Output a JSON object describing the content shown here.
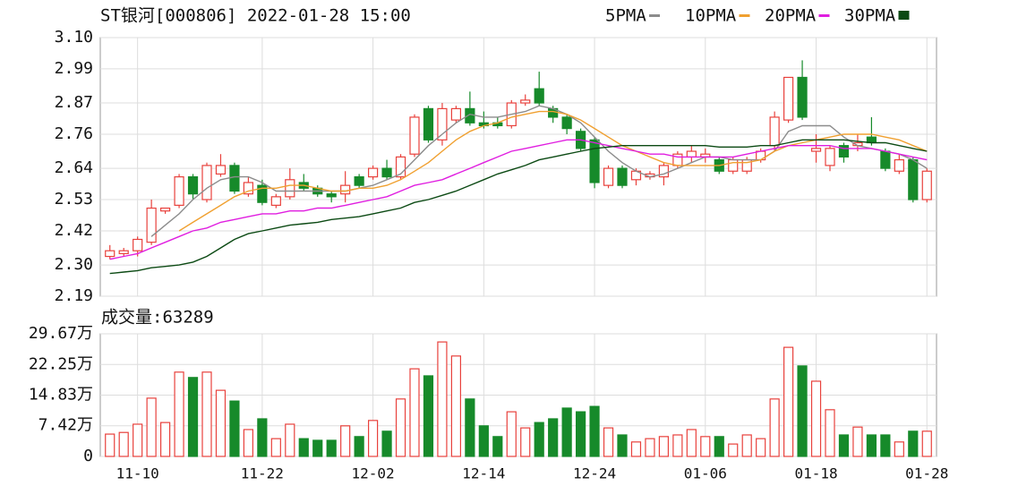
{
  "chart_data": [
    {
      "type": "candlestick",
      "title": "ST银河[000806] 2022-01-28 15:00",
      "open": [
        2.33,
        2.34,
        2.35,
        2.38,
        2.49,
        2.51,
        2.61,
        2.53,
        2.62,
        2.65,
        2.55,
        2.58,
        2.51,
        2.54,
        2.59,
        2.57,
        2.55,
        2.55,
        2.61,
        2.61,
        2.64,
        2.61,
        2.69,
        2.85,
        2.74,
        2.81,
        2.85,
        2.8,
        2.8,
        2.79,
        2.87,
        2.92,
        2.85,
        2.82,
        2.77,
        2.74,
        2.58,
        2.64,
        2.6,
        2.61,
        2.61,
        2.65,
        2.68,
        2.68,
        2.67,
        2.63,
        2.63,
        2.67,
        2.72,
        2.81,
        2.96,
        2.7,
        2.65,
        2.72,
        2.72,
        2.75,
        2.7,
        2.63,
        2.67,
        2.53
      ],
      "high": [
        2.37,
        2.36,
        2.4,
        2.53,
        2.5,
        2.62,
        2.62,
        2.66,
        2.69,
        2.66,
        2.61,
        2.6,
        2.55,
        2.64,
        2.62,
        2.58,
        2.56,
        2.63,
        2.62,
        2.65,
        2.67,
        2.69,
        2.83,
        2.86,
        2.87,
        2.86,
        2.91,
        2.84,
        2.82,
        2.88,
        2.9,
        2.98,
        2.86,
        2.83,
        2.78,
        2.75,
        2.65,
        2.65,
        2.64,
        2.63,
        2.66,
        2.7,
        2.72,
        2.71,
        2.68,
        2.68,
        2.68,
        2.71,
        2.84,
        2.96,
        3.02,
        2.76,
        2.72,
        2.73,
        2.76,
        2.82,
        2.71,
        2.69,
        2.68,
        2.64
      ],
      "low": [
        2.32,
        2.33,
        2.33,
        2.37,
        2.48,
        2.5,
        2.53,
        2.52,
        2.61,
        2.55,
        2.54,
        2.51,
        2.5,
        2.53,
        2.56,
        2.54,
        2.52,
        2.52,
        2.57,
        2.6,
        2.6,
        2.6,
        2.68,
        2.73,
        2.72,
        2.8,
        2.79,
        2.78,
        2.78,
        2.78,
        2.86,
        2.86,
        2.8,
        2.76,
        2.7,
        2.57,
        2.57,
        2.57,
        2.58,
        2.6,
        2.58,
        2.64,
        2.66,
        2.66,
        2.62,
        2.62,
        2.62,
        2.66,
        2.7,
        2.8,
        2.81,
        2.66,
        2.63,
        2.66,
        2.7,
        2.72,
        2.63,
        2.62,
        2.52,
        2.52
      ],
      "close": [
        2.35,
        2.35,
        2.39,
        2.5,
        2.5,
        2.61,
        2.55,
        2.65,
        2.65,
        2.56,
        2.59,
        2.52,
        2.54,
        2.6,
        2.57,
        2.55,
        2.54,
        2.58,
        2.58,
        2.64,
        2.61,
        2.68,
        2.82,
        2.74,
        2.85,
        2.85,
        2.8,
        2.79,
        2.79,
        2.87,
        2.88,
        2.87,
        2.82,
        2.78,
        2.71,
        2.59,
        2.64,
        2.58,
        2.63,
        2.62,
        2.65,
        2.69,
        2.7,
        2.69,
        2.63,
        2.67,
        2.67,
        2.7,
        2.82,
        2.96,
        2.82,
        2.71,
        2.71,
        2.68,
        2.73,
        2.73,
        2.64,
        2.67,
        2.53,
        2.63
      ],
      "up_color": "#e8413c",
      "down_color": "#168a2a",
      "ylim": [
        2.19,
        3.1
      ],
      "yticks": [
        {
          "value": 3.1,
          "label": "3.10"
        },
        2.99,
        2.87,
        2.76,
        2.64,
        2.53,
        2.42,
        {
          "value": 2.3,
          "label": "2.30"
        },
        2.19
      ],
      "grid": true,
      "series": [
        {
          "name": "5PMA",
          "color": "#8c8c8c",
          "values": [
            null,
            null,
            null,
            2.4,
            2.44,
            2.48,
            2.53,
            2.57,
            2.6,
            2.61,
            2.61,
            2.59,
            2.56,
            2.56,
            2.56,
            2.56,
            2.56,
            2.56,
            2.57,
            2.58,
            2.6,
            2.62,
            2.67,
            2.72,
            2.76,
            2.8,
            2.83,
            2.82,
            2.82,
            2.83,
            2.84,
            2.86,
            2.85,
            2.83,
            2.8,
            2.75,
            2.7,
            2.66,
            2.63,
            2.61,
            2.62,
            2.64,
            2.66,
            2.68,
            2.68,
            2.67,
            2.67,
            2.67,
            2.7,
            2.77,
            2.79,
            2.79,
            2.79,
            2.75,
            2.72,
            2.71,
            2.7,
            2.69,
            2.67,
            2.64
          ]
        },
        {
          "name": "10PMA",
          "color": "#f0a030",
          "values": [
            null,
            null,
            null,
            null,
            null,
            2.42,
            2.45,
            2.48,
            2.51,
            2.54,
            2.56,
            2.57,
            2.57,
            2.58,
            2.58,
            2.57,
            2.56,
            2.56,
            2.57,
            2.57,
            2.58,
            2.6,
            2.63,
            2.66,
            2.7,
            2.74,
            2.77,
            2.79,
            2.8,
            2.82,
            2.83,
            2.84,
            2.84,
            2.83,
            2.81,
            2.78,
            2.75,
            2.72,
            2.7,
            2.68,
            2.66,
            2.65,
            2.65,
            2.65,
            2.65,
            2.66,
            2.66,
            2.67,
            2.7,
            2.72,
            2.73,
            2.74,
            2.75,
            2.76,
            2.76,
            2.76,
            2.75,
            2.74,
            2.72,
            2.7
          ]
        },
        {
          "name": "20PMA",
          "color": "#e01ee0",
          "values": [
            2.32,
            2.33,
            2.34,
            2.36,
            2.38,
            2.4,
            2.42,
            2.43,
            2.45,
            2.46,
            2.47,
            2.48,
            2.48,
            2.49,
            2.49,
            2.5,
            2.5,
            2.51,
            2.52,
            2.53,
            2.54,
            2.56,
            2.58,
            2.59,
            2.6,
            2.62,
            2.64,
            2.66,
            2.68,
            2.7,
            2.71,
            2.72,
            2.73,
            2.74,
            2.74,
            2.73,
            2.72,
            2.71,
            2.7,
            2.69,
            2.69,
            2.68,
            2.68,
            2.68,
            2.68,
            2.68,
            2.69,
            2.7,
            2.71,
            2.72,
            2.72,
            2.72,
            2.72,
            2.71,
            2.71,
            2.71,
            2.7,
            2.69,
            2.68,
            2.67
          ]
        },
        {
          "name": "30PMA",
          "color": "#0c4a14",
          "values": [
            2.27,
            2.275,
            2.28,
            2.29,
            2.295,
            2.3,
            2.31,
            2.33,
            2.36,
            2.39,
            2.41,
            2.42,
            2.43,
            2.44,
            2.445,
            2.45,
            2.46,
            2.465,
            2.47,
            2.48,
            2.49,
            2.5,
            2.52,
            2.53,
            2.545,
            2.56,
            2.58,
            2.6,
            2.62,
            2.635,
            2.65,
            2.67,
            2.68,
            2.69,
            2.7,
            2.71,
            2.715,
            2.72,
            2.72,
            2.72,
            2.72,
            2.72,
            2.72,
            2.72,
            2.715,
            2.715,
            2.715,
            2.72,
            2.72,
            2.73,
            2.74,
            2.74,
            2.74,
            2.74,
            2.735,
            2.73,
            2.73,
            2.72,
            2.71,
            2.7
          ]
        }
      ]
    },
    {
      "type": "bar",
      "title": "成交量:63289",
      "categories": [
        null,
        null,
        "11-10",
        null,
        null,
        null,
        null,
        null,
        null,
        null,
        null,
        "11-22",
        null,
        null,
        null,
        null,
        null,
        null,
        null,
        "12-02",
        null,
        null,
        null,
        null,
        null,
        null,
        null,
        "12-14",
        null,
        null,
        null,
        null,
        null,
        null,
        null,
        "12-24",
        null,
        null,
        null,
        null,
        null,
        null,
        null,
        "01-06",
        null,
        null,
        null,
        null,
        null,
        null,
        null,
        "01-18",
        null,
        null,
        null,
        null,
        null,
        null,
        null,
        "01-28"
      ],
      "values": [
        5.4,
        5.8,
        7.8,
        14.1,
        8.2,
        20.4,
        19.1,
        20.4,
        16.0,
        13.4,
        6.5,
        9.1,
        4.3,
        7.8,
        4.3,
        3.9,
        3.9,
        7.4,
        4.8,
        8.7,
        6.1,
        13.9,
        21.2,
        19.5,
        27.7,
        24.3,
        13.9,
        7.4,
        4.8,
        10.8,
        6.9,
        8.2,
        9.1,
        11.7,
        10.8,
        12.1,
        6.9,
        5.2,
        3.5,
        4.3,
        4.8,
        5.2,
        6.5,
        4.8,
        4.8,
        3.0,
        5.2,
        4.3,
        13.9,
        26.4,
        21.9,
        18.2,
        11.3,
        5.2,
        7.1,
        5.2,
        5.2,
        3.5,
        6.1,
        6.1
      ],
      "ylim": [
        0,
        29.67
      ],
      "yticks": [
        0,
        {
          "value": 7.42,
          "label": "7.42万"
        },
        {
          "value": 14.83,
          "label": "14.83万"
        },
        {
          "value": 22.25,
          "label": "22.25万"
        },
        {
          "value": 29.67,
          "label": "29.67万"
        }
      ],
      "grid": true
    }
  ]
}
